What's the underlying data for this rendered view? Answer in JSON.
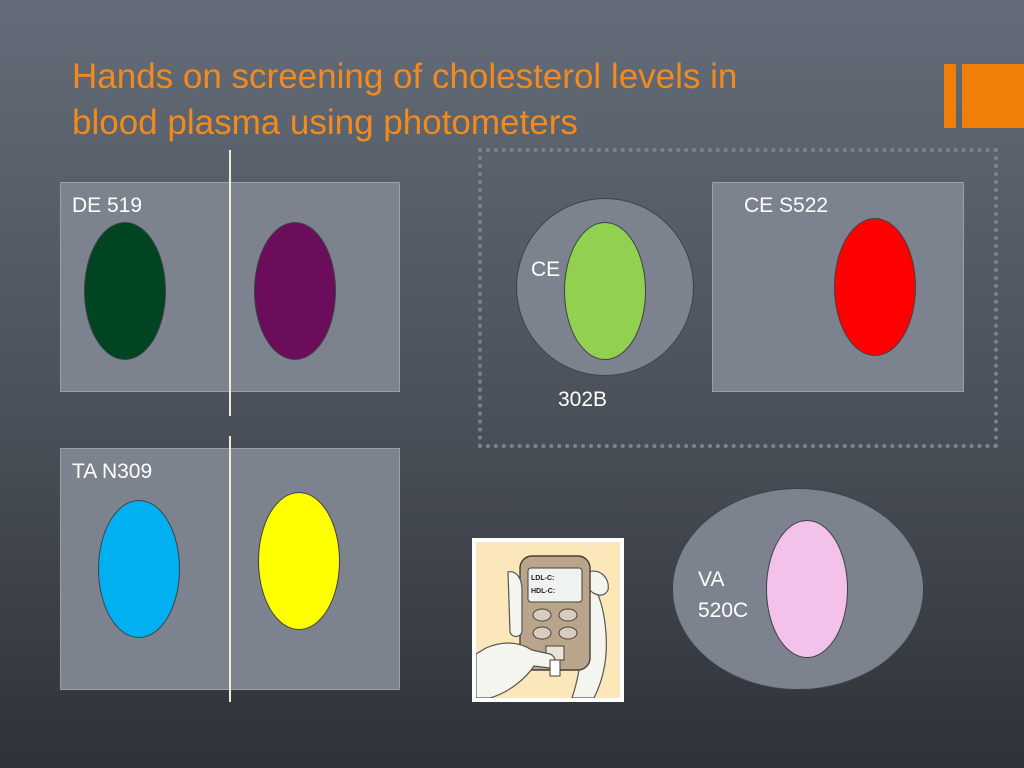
{
  "slide": {
    "title_line1": "Hands on screening of cholesterol levels in",
    "title_line2": "blood plasma using photometers",
    "accent_color": "#f28a1d"
  },
  "panels": {
    "de519": {
      "label": "DE  519",
      "colors": [
        "#004422",
        "#6b0d5a"
      ]
    },
    "ta_n309": {
      "label": "TA N309",
      "colors": [
        "#00b0f0",
        "#ffff00"
      ]
    },
    "ce_302b": {
      "label_top": "CE",
      "label_bottom": "302B",
      "color": "#92d050"
    },
    "ce_s522": {
      "label": "CE S522",
      "color": "#ff0000"
    },
    "va_520c": {
      "label_line1": "VA",
      "label_line2": "520C",
      "color": "#f4c1ea"
    }
  },
  "illustration": {
    "name": "hand-held-cholesterol-meter",
    "screen_line1": "LDL-C:",
    "screen_line2": "HDL-C:"
  }
}
